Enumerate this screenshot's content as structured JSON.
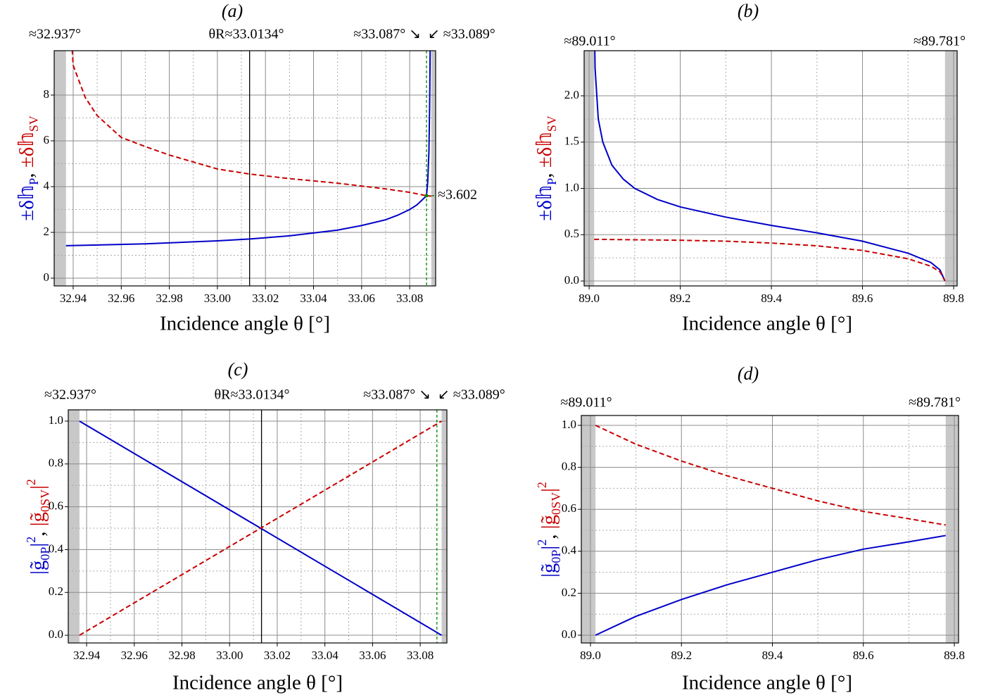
{
  "chart_data": [
    {
      "type": "line",
      "title": "(a)",
      "xlabel": "Incidence angle θ [°]",
      "ylabel": [
        "±δ𝕙",
        "P",
        ", ",
        "±δ𝕙",
        "SV"
      ],
      "xlim": [
        32.9321,
        33.0908
      ],
      "ylim": [
        -0.34,
        9.94
      ],
      "xticks": [
        32.94,
        32.96,
        32.98,
        {
          "value": 33,
          "label": "33.00"
        },
        33.02,
        33.04,
        33.06,
        33.08
      ],
      "yticks": [
        0,
        2,
        4,
        6,
        8
      ],
      "grid": true,
      "bands": [
        32.937,
        33.089
      ],
      "band_color": "#c8c8c8",
      "vlines": [
        {
          "x": 33.0134,
          "color": "#000000",
          "dash": false
        },
        {
          "x": 33.087,
          "color": "#008800",
          "dash": true
        }
      ],
      "hlines": [
        {
          "y": 3.602,
          "x0": 33.087,
          "color": "#008800"
        }
      ],
      "annotations": [
        {
          "text": "≈32.937°",
          "color": "#000000"
        },
        {
          "text": "θR≈33.0134°",
          "color": "#000000"
        },
        {
          "text": "≈33.087° ↘",
          "color": "#008800"
        },
        {
          "text": "↙ ≈33.089°",
          "color": "#000000"
        },
        {
          "text": "≈3.602",
          "color": "#008800"
        }
      ],
      "series": [
        {
          "color": "#0000c8",
          "dash": false,
          "x": [
            32.937,
            32.95,
            32.97,
            33.0,
            33.0134,
            33.03,
            33.05,
            33.06,
            33.07,
            33.075,
            33.08,
            33.083,
            33.085,
            33.086,
            33.087,
            33.0875,
            33.088,
            33.0883,
            33.0886
          ],
          "values": [
            1.42,
            1.45,
            1.5,
            1.63,
            1.71,
            1.85,
            2.1,
            2.3,
            2.55,
            2.75,
            3.0,
            3.2,
            3.4,
            3.5,
            3.602,
            4.2,
            5.5,
            7.5,
            11
          ]
        },
        {
          "color": "#c80000",
          "dash": true,
          "x": [
            32.939,
            32.94,
            32.945,
            32.95,
            32.96,
            32.97,
            32.98,
            33.0,
            33.0134,
            33.03,
            33.05,
            33.07,
            33.08,
            33.087,
            33.089
          ],
          "values": [
            11,
            9.3,
            7.9,
            7.1,
            6.15,
            5.75,
            5.38,
            4.77,
            4.55,
            4.35,
            4.15,
            3.9,
            3.75,
            3.602,
            3.58
          ]
        }
      ]
    },
    {
      "type": "line",
      "title": "(b)",
      "xlabel": "Incidence angle θ [°]",
      "ylabel": [
        "±δ𝕙",
        "P",
        ", ",
        "±δ𝕙",
        "SV"
      ],
      "xlim": [
        88.989,
        89.8077
      ],
      "ylim": [
        -0.053,
        2.487
      ],
      "xticks": [
        {
          "value": 89,
          "label": "89.0"
        },
        89.2,
        89.4,
        89.6,
        89.8
      ],
      "yticks": [
        {
          "value": 0,
          "label": "0.0"
        },
        0.5,
        {
          "value": 1,
          "label": "1.0"
        },
        1.5,
        {
          "value": 2,
          "label": "2.0"
        }
      ],
      "grid": true,
      "bands": [
        89.011,
        89.781
      ],
      "band_color": "#c8c8c8",
      "vlines": [],
      "hlines": [],
      "annotations": [
        {
          "text": "≈89.011°",
          "color": "#000000"
        },
        {
          "text": "≈89.781°",
          "color": "#000000"
        }
      ],
      "series": [
        {
          "color": "#0000c8",
          "dash": false,
          "x": [
            89.011,
            89.013,
            89.02,
            89.03,
            89.05,
            89.075,
            89.1,
            89.15,
            89.2,
            89.3,
            89.4,
            89.5,
            89.6,
            89.7,
            89.75,
            89.77,
            89.781
          ],
          "values": [
            3,
            2.3,
            1.75,
            1.5,
            1.25,
            1.1,
            1.0,
            0.88,
            0.8,
            0.69,
            0.6,
            0.52,
            0.43,
            0.3,
            0.2,
            0.12,
            0
          ]
        },
        {
          "color": "#c80000",
          "dash": true,
          "x": [
            89.011,
            89.2,
            89.3,
            89.4,
            89.5,
            89.6,
            89.7,
            89.75,
            89.77,
            89.781
          ],
          "values": [
            0.45,
            0.44,
            0.43,
            0.41,
            0.38,
            0.33,
            0.24,
            0.16,
            0.1,
            0
          ]
        }
      ]
    },
    {
      "type": "line",
      "title": "(c)",
      "xlabel": "Incidence angle θ [°]",
      "ylabel": [
        "|g̃",
        "0P",
        "|",
        "2",
        ", ",
        "|g̃",
        "0SV",
        "|",
        "2"
      ],
      "xlim": [
        32.9323,
        33.0912
      ],
      "ylim": [
        -0.036,
        1.0526
      ],
      "xticks": [
        32.94,
        32.96,
        32.98,
        {
          "value": 33,
          "label": "33.00"
        },
        33.02,
        33.04,
        33.06,
        33.08
      ],
      "yticks": [
        {
          "value": 0,
          "label": "0.0"
        },
        0.2,
        0.4,
        0.6,
        0.8,
        {
          "value": 1,
          "label": "1.0"
        }
      ],
      "grid": true,
      "bands": [
        32.937,
        33.089
      ],
      "band_color": "#c8c8c8",
      "vlines": [
        {
          "x": 33.0134,
          "color": "#000000",
          "dash": false
        },
        {
          "x": 33.087,
          "color": "#008800",
          "dash": true
        }
      ],
      "hlines": [],
      "annotations": [
        {
          "text": "≈32.937°",
          "color": "#000000"
        },
        {
          "text": "θR≈33.0134°",
          "color": "#000000"
        },
        {
          "text": "≈33.087° ↘",
          "color": "#008800"
        },
        {
          "text": "↙ ≈33.089°",
          "color": "#000000"
        }
      ],
      "series": [
        {
          "color": "#0000c8",
          "dash": false,
          "x": [
            32.937,
            33.089
          ],
          "values": [
            1,
            0
          ]
        },
        {
          "color": "#c80000",
          "dash": true,
          "x": [
            32.937,
            33.089
          ],
          "values": [
            0,
            1
          ]
        }
      ]
    },
    {
      "type": "line",
      "title": "(d)",
      "xlabel": "Incidence angle θ [°]",
      "ylabel": [
        "|g̃",
        "0P",
        "|",
        "2",
        ", ",
        "|g̃",
        "0SV",
        "|",
        "2"
      ],
      "xlim": [
        88.9799,
        89.8093
      ],
      "ylim": [
        -0.037,
        1.047
      ],
      "xticks": [
        {
          "value": 89,
          "label": "89.0"
        },
        89.2,
        89.4,
        89.6,
        89.8
      ],
      "yticks": [
        {
          "value": 0,
          "label": "0.0"
        },
        0.2,
        0.4,
        0.6,
        0.8,
        {
          "value": 1,
          "label": "1.0"
        }
      ],
      "grid": true,
      "bands": [
        89.011,
        89.781
      ],
      "band_color": "#c8c8c8",
      "vlines": [],
      "hlines": [],
      "annotations": [
        {
          "text": "≈89.011°",
          "color": "#000000"
        },
        {
          "text": "≈89.781°",
          "color": "#000000"
        }
      ],
      "series": [
        {
          "color": "#0000c8",
          "dash": false,
          "x": [
            89.011,
            89.1,
            89.2,
            89.3,
            89.4,
            89.5,
            89.6,
            89.7,
            89.781
          ],
          "values": [
            0,
            0.09,
            0.17,
            0.24,
            0.3,
            0.36,
            0.41,
            0.445,
            0.475
          ]
        },
        {
          "color": "#c80000",
          "dash": true,
          "x": [
            89.011,
            89.1,
            89.2,
            89.3,
            89.4,
            89.5,
            89.6,
            89.7,
            89.781
          ],
          "values": [
            1,
            0.91,
            0.83,
            0.76,
            0.7,
            0.64,
            0.59,
            0.555,
            0.525
          ]
        }
      ]
    }
  ]
}
